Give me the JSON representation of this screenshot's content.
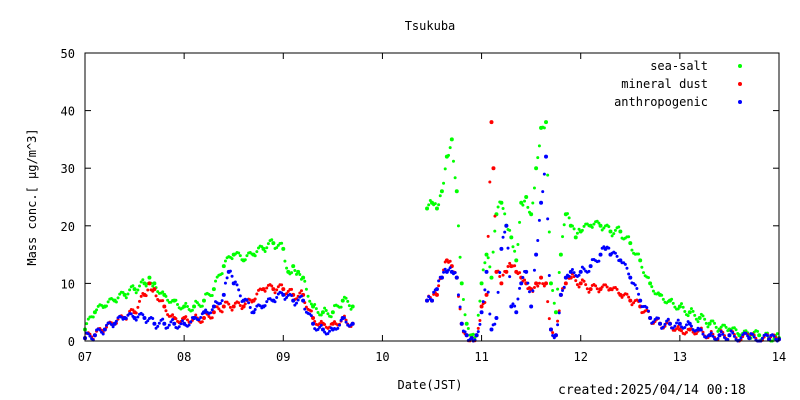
{
  "chart_data": {
    "type": "scatter",
    "title": "Tsukuba",
    "xlabel": "Date(JST)",
    "ylabel": "Mass conc.[ μg/m^3]",
    "x_ticks": [
      "07",
      "08",
      "09",
      "10",
      "11",
      "12",
      "13",
      "14"
    ],
    "xlim": [
      7,
      14
    ],
    "ylim": [
      0,
      50
    ],
    "y_ticks": [
      0,
      10,
      20,
      30,
      40,
      50
    ],
    "grid": false,
    "legend_position": "top-right",
    "series": [
      {
        "name": "sea-salt",
        "color": "#00ff00",
        "points": [
          [
            7.0,
            2
          ],
          [
            7.1,
            5
          ],
          [
            7.2,
            6
          ],
          [
            7.3,
            7
          ],
          [
            7.4,
            8
          ],
          [
            7.5,
            9
          ],
          [
            7.6,
            10
          ],
          [
            7.65,
            11
          ],
          [
            7.7,
            10
          ],
          [
            7.8,
            8
          ],
          [
            7.9,
            7
          ],
          [
            8.0,
            6
          ],
          [
            8.1,
            6
          ],
          [
            8.2,
            7
          ],
          [
            8.3,
            9
          ],
          [
            8.4,
            13
          ],
          [
            8.5,
            15
          ],
          [
            8.6,
            14
          ],
          [
            8.7,
            15
          ],
          [
            8.8,
            16
          ],
          [
            8.9,
            17
          ],
          [
            9.0,
            16
          ],
          [
            9.05,
            12
          ],
          [
            9.1,
            13
          ],
          [
            9.15,
            12
          ],
          [
            9.2,
            11
          ],
          [
            9.3,
            6
          ],
          [
            9.4,
            5
          ],
          [
            9.5,
            5
          ],
          [
            9.6,
            7
          ],
          [
            9.7,
            6
          ],
          [
            10.45,
            23
          ],
          [
            10.5,
            24
          ],
          [
            10.55,
            23
          ],
          [
            10.6,
            26
          ],
          [
            10.65,
            32
          ],
          [
            10.7,
            35
          ],
          [
            10.75,
            26
          ],
          [
            10.8,
            10
          ],
          [
            10.85,
            3
          ],
          [
            10.9,
            1
          ],
          [
            10.95,
            1
          ],
          [
            11.0,
            10
          ],
          [
            11.05,
            15
          ],
          [
            11.1,
            11
          ],
          [
            11.15,
            22
          ],
          [
            11.2,
            24
          ],
          [
            11.25,
            20
          ],
          [
            11.3,
            18
          ],
          [
            11.35,
            14
          ],
          [
            11.4,
            24
          ],
          [
            11.45,
            25
          ],
          [
            11.5,
            22
          ],
          [
            11.55,
            30
          ],
          [
            11.6,
            37
          ],
          [
            11.65,
            38
          ],
          [
            11.7,
            10
          ],
          [
            11.75,
            5
          ],
          [
            11.8,
            15
          ],
          [
            11.85,
            22
          ],
          [
            11.9,
            20
          ],
          [
            11.95,
            18
          ],
          [
            12.0,
            19
          ],
          [
            12.1,
            20
          ],
          [
            12.2,
            20
          ],
          [
            12.3,
            19
          ],
          [
            12.4,
            19
          ],
          [
            12.5,
            17
          ],
          [
            12.6,
            14
          ],
          [
            12.7,
            10
          ],
          [
            12.8,
            8
          ],
          [
            12.9,
            7
          ],
          [
            13.0,
            6
          ],
          [
            13.1,
            5
          ],
          [
            13.2,
            4
          ],
          [
            13.3,
            3
          ],
          [
            13.4,
            2
          ],
          [
            13.5,
            2
          ],
          [
            13.6,
            1
          ],
          [
            13.7,
            1
          ],
          [
            13.8,
            1
          ],
          [
            13.9,
            0.5
          ],
          [
            14.0,
            0.5
          ]
        ]
      },
      {
        "name": "mineral dust",
        "color": "#ff0000",
        "points": [
          [
            7.0,
            0.5
          ],
          [
            7.1,
            1
          ],
          [
            7.2,
            2
          ],
          [
            7.3,
            3
          ],
          [
            7.4,
            4
          ],
          [
            7.5,
            5
          ],
          [
            7.6,
            8
          ],
          [
            7.65,
            10
          ],
          [
            7.7,
            9
          ],
          [
            7.8,
            6
          ],
          [
            7.9,
            4
          ],
          [
            8.0,
            4
          ],
          [
            8.1,
            4
          ],
          [
            8.2,
            4
          ],
          [
            8.3,
            5
          ],
          [
            8.4,
            6
          ],
          [
            8.5,
            6
          ],
          [
            8.6,
            6
          ],
          [
            8.7,
            7
          ],
          [
            8.8,
            9
          ],
          [
            8.9,
            9
          ],
          [
            9.0,
            9
          ],
          [
            9.1,
            8
          ],
          [
            9.2,
            8
          ],
          [
            9.3,
            4
          ],
          [
            9.4,
            3
          ],
          [
            9.5,
            3
          ],
          [
            9.6,
            4
          ],
          [
            9.7,
            3
          ],
          [
            10.45,
            7
          ],
          [
            10.5,
            7
          ],
          [
            10.55,
            8
          ],
          [
            10.6,
            11
          ],
          [
            10.65,
            14
          ],
          [
            10.7,
            13
          ],
          [
            10.75,
            11
          ],
          [
            10.8,
            3
          ],
          [
            10.85,
            1
          ],
          [
            10.9,
            0.5
          ],
          [
            10.95,
            1
          ],
          [
            11.0,
            6
          ],
          [
            11.05,
            8
          ],
          [
            11.1,
            38
          ],
          [
            11.12,
            30
          ],
          [
            11.15,
            12
          ],
          [
            11.2,
            10
          ],
          [
            11.25,
            12
          ],
          [
            11.3,
            13
          ],
          [
            11.35,
            12
          ],
          [
            11.4,
            11
          ],
          [
            11.45,
            10
          ],
          [
            11.5,
            9
          ],
          [
            11.55,
            10
          ],
          [
            11.6,
            11
          ],
          [
            11.65,
            10
          ],
          [
            11.7,
            2
          ],
          [
            11.75,
            1
          ],
          [
            11.8,
            8
          ],
          [
            11.85,
            10
          ],
          [
            11.9,
            11
          ],
          [
            12.0,
            10
          ],
          [
            12.1,
            9
          ],
          [
            12.2,
            9
          ],
          [
            12.3,
            9
          ],
          [
            12.4,
            8
          ],
          [
            12.5,
            7
          ],
          [
            12.6,
            6
          ],
          [
            12.7,
            4
          ],
          [
            12.8,
            3
          ],
          [
            12.9,
            3
          ],
          [
            13.0,
            2
          ],
          [
            13.1,
            2
          ],
          [
            13.2,
            2
          ],
          [
            13.3,
            1
          ],
          [
            13.4,
            1
          ],
          [
            13.5,
            1
          ],
          [
            13.7,
            0.5
          ],
          [
            13.9,
            0.3
          ],
          [
            14.0,
            0.3
          ]
        ]
      },
      {
        "name": "anthropogenic",
        "color": "#0000ff",
        "points": [
          [
            7.0,
            0.5
          ],
          [
            7.1,
            1
          ],
          [
            7.2,
            2
          ],
          [
            7.3,
            3
          ],
          [
            7.4,
            4
          ],
          [
            7.5,
            4
          ],
          [
            7.6,
            4
          ],
          [
            7.7,
            3
          ],
          [
            7.8,
            3
          ],
          [
            7.9,
            3
          ],
          [
            8.0,
            3
          ],
          [
            8.1,
            4
          ],
          [
            8.2,
            5
          ],
          [
            8.3,
            6
          ],
          [
            8.4,
            8
          ],
          [
            8.45,
            12
          ],
          [
            8.5,
            10
          ],
          [
            8.6,
            7
          ],
          [
            8.7,
            5
          ],
          [
            8.8,
            6
          ],
          [
            8.9,
            7
          ],
          [
            9.0,
            8
          ],
          [
            9.1,
            7
          ],
          [
            9.2,
            7
          ],
          [
            9.3,
            3
          ],
          [
            9.4,
            2
          ],
          [
            9.5,
            2
          ],
          [
            9.6,
            4
          ],
          [
            9.7,
            3
          ],
          [
            10.45,
            7
          ],
          [
            10.5,
            7
          ],
          [
            10.55,
            9
          ],
          [
            10.6,
            11
          ],
          [
            10.65,
            12
          ],
          [
            10.7,
            12
          ],
          [
            10.75,
            11
          ],
          [
            10.8,
            3
          ],
          [
            10.85,
            1
          ],
          [
            10.9,
            0.5
          ],
          [
            10.95,
            1
          ],
          [
            11.0,
            5
          ],
          [
            11.05,
            12
          ],
          [
            11.1,
            2
          ],
          [
            11.15,
            4
          ],
          [
            11.2,
            16
          ],
          [
            11.25,
            20
          ],
          [
            11.3,
            6
          ],
          [
            11.35,
            5
          ],
          [
            11.4,
            10
          ],
          [
            11.45,
            12
          ],
          [
            11.5,
            6
          ],
          [
            11.55,
            15
          ],
          [
            11.6,
            24
          ],
          [
            11.65,
            32
          ],
          [
            11.7,
            2
          ],
          [
            11.75,
            1
          ],
          [
            11.8,
            8
          ],
          [
            11.85,
            11
          ],
          [
            11.9,
            12
          ],
          [
            12.0,
            12
          ],
          [
            12.1,
            13
          ],
          [
            12.2,
            15
          ],
          [
            12.25,
            16
          ],
          [
            12.3,
            15
          ],
          [
            12.4,
            14
          ],
          [
            12.5,
            11
          ],
          [
            12.6,
            7
          ],
          [
            12.7,
            4
          ],
          [
            12.8,
            3
          ],
          [
            12.9,
            3
          ],
          [
            13.0,
            3
          ],
          [
            13.1,
            3
          ],
          [
            13.2,
            2
          ],
          [
            13.3,
            1
          ],
          [
            13.4,
            1
          ],
          [
            13.5,
            1
          ],
          [
            13.7,
            0.5
          ],
          [
            13.9,
            0.3
          ],
          [
            14.0,
            0.3
          ]
        ]
      }
    ]
  },
  "footer": {
    "created": "created:2025/04/14 00:18"
  }
}
